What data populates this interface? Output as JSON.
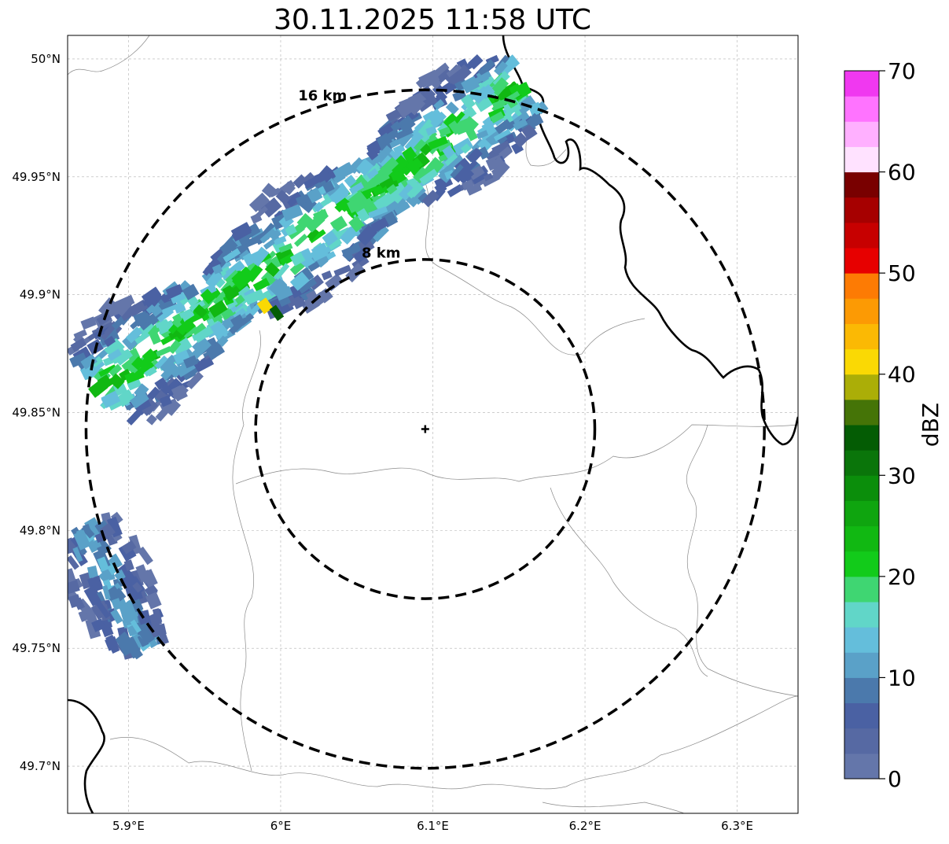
{
  "title": "30.11.2025 11:58 UTC",
  "map": {
    "lon_range": [
      5.86,
      6.34
    ],
    "lat_range": [
      49.68,
      50.01
    ],
    "lon_ticks": [
      {
        "value": 5.9,
        "label": "5.9°E"
      },
      {
        "value": 6.0,
        "label": "6°E"
      },
      {
        "value": 6.1,
        "label": "6.1°E"
      },
      {
        "value": 6.2,
        "label": "6.2°E"
      },
      {
        "value": 6.3,
        "label": "6.3°E"
      }
    ],
    "lat_ticks": [
      {
        "value": 50.0,
        "label": "50°N"
      },
      {
        "value": 49.95,
        "label": "49.95°N"
      },
      {
        "value": 49.9,
        "label": "49.9°N"
      },
      {
        "value": 49.85,
        "label": "49.85°N"
      },
      {
        "value": 49.8,
        "label": "49.8°N"
      },
      {
        "value": 49.75,
        "label": "49.75°N"
      },
      {
        "value": 49.7,
        "label": "49.7°N"
      }
    ],
    "gridlines": true,
    "radar_site": {
      "lon": 6.095,
      "lat": 49.843
    },
    "range_rings": [
      {
        "radius_km": 8,
        "label": "8 km"
      },
      {
        "radius_km": 16,
        "label": "16 km"
      }
    ]
  },
  "colorbar": {
    "label": "dBZ",
    "min": 0,
    "max": 70,
    "tick_values": [
      0,
      10,
      20,
      30,
      40,
      50,
      60,
      70
    ],
    "tick_labels": [
      "0",
      "10",
      "20",
      "30",
      "40",
      "50",
      "60",
      "70"
    ],
    "colors": [
      "#6476aa",
      "#5669a3",
      "#4a61a3",
      "#4b79ac",
      "#5aa1c8",
      "#64bedb",
      "#61d6c8",
      "#3fd672",
      "#12cb1a",
      "#11b812",
      "#0fa50f",
      "#0b8e0b",
      "#0a750a",
      "#045c04",
      "#457407",
      "#abae07",
      "#fad904",
      "#fbb904",
      "#fc9a04",
      "#fd7b04",
      "#e70000",
      "#c70000",
      "#a60000",
      "#790000",
      "#ffe2ff",
      "#ffb0ff",
      "#ff73ff",
      "#f038f0"
    ]
  },
  "chart_data": {
    "type": "heatmap",
    "title": "30.11.2025 11:58 UTC",
    "colorbar_label": "dBZ",
    "value_range": [
      0,
      70
    ],
    "echo_bands": [
      {
        "start": [
          5.88,
          49.86
        ],
        "end": [
          6.16,
          49.99
        ],
        "core_dbz": 22
      },
      {
        "start": [
          5.87,
          49.8
        ],
        "end": [
          5.91,
          49.75
        ],
        "core_dbz": 12
      }
    ],
    "max_echo": {
      "lon": 5.99,
      "lat": 49.895,
      "dbz": 42
    }
  }
}
